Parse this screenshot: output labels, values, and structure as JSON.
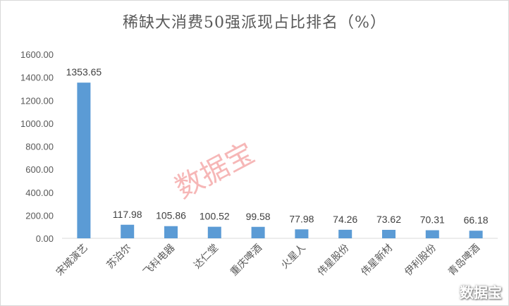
{
  "chart_data": {
    "type": "bar",
    "title": "稀缺大消费50强派现占比排名（%）",
    "categories": [
      "宋城演艺",
      "苏泊尔",
      "飞科电器",
      "达仁堂",
      "重庆啤酒",
      "火星人",
      "伟星股份",
      "伟星新材",
      "伊利股份",
      "青岛啤酒"
    ],
    "values": [
      1353.65,
      117.98,
      105.86,
      100.52,
      99.58,
      77.98,
      74.26,
      73.62,
      70.31,
      66.18
    ],
    "value_labels": [
      "1353.65",
      "117.98",
      "105.86",
      "100.52",
      "99.58",
      "77.98",
      "74.26",
      "73.62",
      "70.31",
      "66.18"
    ],
    "ylim": [
      0,
      1600
    ],
    "yticks": [
      "0.00",
      "200.00",
      "400.00",
      "600.00",
      "800.00",
      "1000.00",
      "1200.00",
      "1400.00",
      "1600.00"
    ],
    "grid": false,
    "legend": "none",
    "bar_color": "#5b9bd5"
  },
  "watermark": {
    "center_text": "数据宝",
    "corner_text": "数据宝"
  }
}
